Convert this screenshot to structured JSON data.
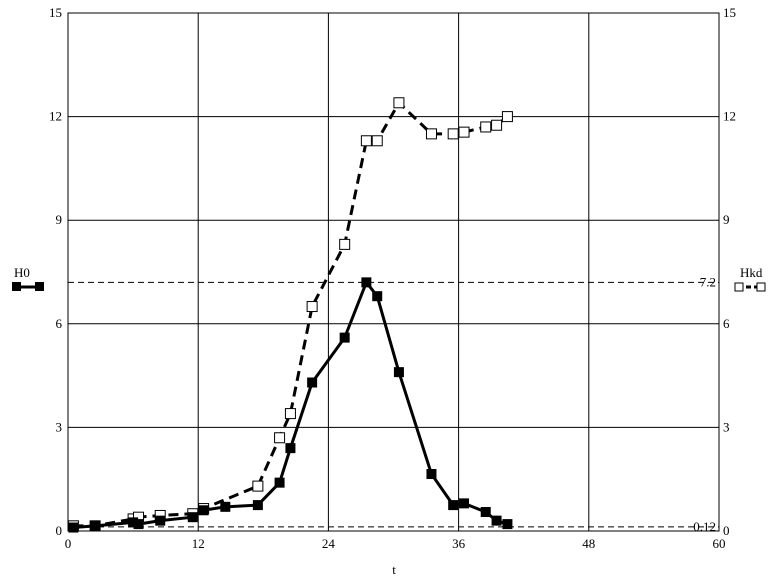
{
  "chart_data": {
    "type": "line",
    "xlabel": "t",
    "xlim": [
      0,
      60
    ],
    "ylim": [
      0,
      15
    ],
    "x_ticks": [
      "0",
      "12",
      "24",
      "36",
      "48",
      "60"
    ],
    "y_ticks": [
      "0",
      "3",
      "6",
      "9",
      "12",
      "15"
    ],
    "grid": true,
    "reference_lines": [
      {
        "value": 7.2,
        "label": "7.2"
      },
      {
        "value": 0.12,
        "label": "0.12"
      }
    ],
    "series": [
      {
        "name": "H0",
        "style": "solid",
        "marker": "filled-square",
        "color": "#000000",
        "x": [
          0.5,
          2.5,
          6.0,
          6.5,
          8.5,
          11.5,
          12.5,
          14.5,
          17.5,
          19.5,
          20.5,
          22.5,
          25.5,
          27.5,
          28.5,
          30.5,
          33.5,
          35.5,
          36.5,
          38.5,
          39.5,
          40.5
        ],
        "y": [
          0.1,
          0.15,
          0.25,
          0.2,
          0.3,
          0.4,
          0.6,
          0.7,
          0.75,
          1.4,
          2.4,
          4.3,
          5.6,
          7.2,
          6.8,
          4.6,
          1.65,
          0.75,
          0.8,
          0.55,
          0.3,
          0.2
        ]
      },
      {
        "name": "Hkd",
        "style": "dashed",
        "marker": "open-square",
        "color": "#000000",
        "x": [
          0.5,
          2.5,
          6.0,
          6.5,
          8.5,
          11.5,
          12.5,
          17.5,
          19.5,
          20.5,
          22.5,
          25.5,
          27.5,
          28.5,
          30.5,
          33.5,
          35.5,
          36.5,
          38.5,
          39.5,
          40.5
        ],
        "y": [
          0.15,
          0.15,
          0.35,
          0.4,
          0.45,
          0.5,
          0.65,
          1.3,
          2.7,
          3.4,
          6.5,
          8.3,
          11.3,
          11.3,
          12.4,
          11.5,
          11.5,
          11.55,
          11.7,
          11.75,
          12.0
        ]
      }
    ]
  }
}
